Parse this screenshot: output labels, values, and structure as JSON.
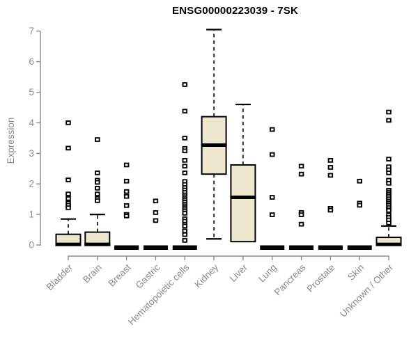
{
  "chart_data": {
    "type": "boxplot",
    "title": "ENSG00000223039 - 7SK",
    "ylabel": "Expression",
    "ylim": [
      0,
      7.1
    ],
    "yticks": [
      0,
      1,
      2,
      3,
      4,
      5,
      6,
      7
    ],
    "grid": false,
    "legend": "none",
    "categories": [
      "Bladder",
      "Brain",
      "Breast",
      "Gastric",
      "Hematopoietic cells",
      "Kidney",
      "Liver",
      "Lung",
      "Pancreas",
      "Prostate",
      "Skin",
      "Unknown / Other"
    ],
    "series": [
      {
        "name": "Bladder",
        "q1": 0,
        "median": 0.02,
        "q3": 0.35,
        "whisker_low": 0,
        "whisker_high": 0.85,
        "outliers": [
          4.0,
          3.17,
          2.13,
          1.67,
          1.52,
          1.37,
          1.3,
          1.22
        ]
      },
      {
        "name": "Brain",
        "q1": 0,
        "median": 0.02,
        "q3": 0.42,
        "whisker_low": 0,
        "whisker_high": 1.0,
        "outliers": [
          3.45,
          2.36,
          2.12,
          2.05,
          1.86,
          1.67,
          1.52,
          1.45
        ]
      },
      {
        "name": "Breast",
        "q1": 0,
        "median": 0,
        "q3": 0,
        "whisker_low": 0,
        "whisker_high": 0,
        "outliers": [
          2.62,
          2.09,
          1.75,
          1.59,
          1.29,
          1.0,
          0.95
        ]
      },
      {
        "name": "Gastric",
        "q1": 0,
        "median": 0,
        "q3": 0,
        "whisker_low": 0,
        "whisker_high": 0,
        "outliers": [
          1.44,
          1.06,
          0.8
        ]
      },
      {
        "name": "Hematopoietic cells",
        "q1": 0,
        "median": 0,
        "q3": 0,
        "whisker_low": 0,
        "whisker_high": 0,
        "outliers": [
          5.25,
          4.38,
          3.5,
          3.16,
          3.08,
          2.77,
          2.58,
          2.36,
          2.08,
          1.98,
          1.88,
          1.8,
          1.72,
          1.64,
          1.58,
          1.52,
          1.46,
          1.4,
          1.34,
          1.28,
          1.22,
          1.16,
          1.1,
          1.04,
          0.86,
          0.78,
          0.68,
          0.62,
          0.46,
          0.34,
          0.15
        ]
      },
      {
        "name": "Kidney",
        "q1": 2.32,
        "median": 3.27,
        "q3": 4.2,
        "whisker_low": 0.2,
        "whisker_high": 7.05,
        "outliers": []
      },
      {
        "name": "Liver",
        "q1": 0.11,
        "median": 1.56,
        "q3": 2.62,
        "whisker_low": 0.11,
        "whisker_high": 4.6,
        "outliers": []
      },
      {
        "name": "Lung",
        "q1": 0,
        "median": 0,
        "q3": 0,
        "whisker_low": 0,
        "whisker_high": 0,
        "outliers": [
          3.78,
          2.96,
          1.56,
          0.99
        ]
      },
      {
        "name": "Pancreas",
        "q1": 0,
        "median": 0,
        "q3": 0,
        "whisker_low": 0,
        "whisker_high": 0,
        "outliers": [
          2.58,
          2.32,
          1.06,
          0.99,
          0.68
        ]
      },
      {
        "name": "Prostate",
        "q1": 0,
        "median": 0,
        "q3": 0,
        "whisker_low": 0,
        "whisker_high": 0,
        "outliers": [
          2.77,
          2.54,
          2.28,
          1.2,
          1.14
        ]
      },
      {
        "name": "Skin",
        "q1": 0,
        "median": 0,
        "q3": 0,
        "whisker_low": 0,
        "whisker_high": 0,
        "outliers": [
          2.09,
          1.37,
          1.3
        ]
      },
      {
        "name": "Unknown / Other",
        "q1": 0,
        "median": 0.02,
        "q3": 0.25,
        "whisker_low": 0,
        "whisker_high": 0.62,
        "outliers": [
          4.35,
          4.08,
          2.81,
          2.56,
          2.46,
          2.36,
          2.12,
          2.02,
          1.79,
          1.73,
          1.67,
          1.61,
          1.55,
          1.49,
          1.43,
          1.37,
          1.31,
          1.25,
          1.19,
          1.13,
          0.98,
          0.9,
          0.82,
          0.72
        ]
      }
    ],
    "colors": {
      "box_fill": "#ECE7CD",
      "box_stroke": "#000000",
      "median": "#000000",
      "outlier_stroke": "#000000",
      "axis": "#8A8A8A",
      "tick_label": "#8A8A8A",
      "title": "#000000",
      "background": "#FFFFFF"
    }
  }
}
